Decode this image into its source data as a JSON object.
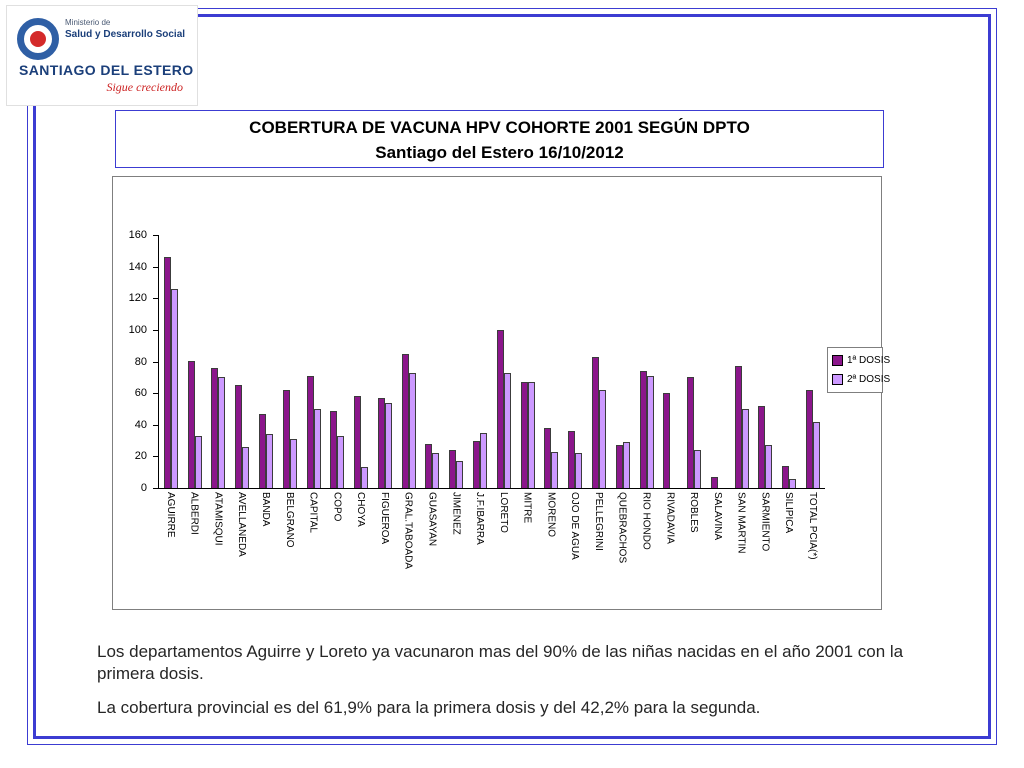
{
  "logo": {
    "line1": "Ministerio de",
    "line2": "Salud y Desarrollo Social",
    "line3": "SANTIAGO DEL ESTERO",
    "tagline": "Sigue creciendo"
  },
  "title": {
    "line1": "COBERTURA DE VACUNA HPV COHORTE 2001 SEGÚN DPTO",
    "line2": "Santiago del Estero 16/10/2012"
  },
  "chart_data": {
    "type": "bar",
    "title": "",
    "xlabel": "",
    "ylabel": "",
    "ylim": [
      0,
      160
    ],
    "yticks": [
      0,
      20,
      40,
      60,
      80,
      100,
      120,
      140,
      160
    ],
    "grid": false,
    "legend_position": "right",
    "categories": [
      "AGUIRRE",
      "ALBERDI",
      "ATAMISQUI",
      "AVELLANEDA",
      "BANDA",
      "BELGRANO",
      "CAPITAL",
      "COPO",
      "CHOYA",
      "FIGUEROA",
      "GRAL.TABOADA",
      "GUASAYAN",
      "JIMENEZ",
      "J.F.IBARRA",
      "LORETO",
      "MITRE",
      "MORENO",
      "OJO DE AGUA",
      "PELLEGRINI",
      "QUEBRACHOS",
      "RIO HONDO",
      "RIVADAVIA",
      "ROBLES",
      "SALAVINA",
      "SAN MARTIN",
      "SARMIENTO",
      "SILIPICA",
      "TOTAL PCIA(*)"
    ],
    "series": [
      {
        "name": "1ª DOSIS",
        "color": "#8b168b",
        "values": [
          146,
          80,
          76,
          65,
          47,
          62,
          71,
          49,
          58,
          57,
          85,
          28,
          24,
          30,
          100,
          67,
          38,
          36,
          83,
          27,
          74,
          60,
          70,
          7,
          77,
          52,
          14,
          62
        ]
      },
      {
        "name": "2ª DOSIS",
        "color": "#cc99ff",
        "values": [
          126,
          33,
          70,
          26,
          34,
          31,
          50,
          33,
          13,
          54,
          73,
          22,
          17,
          35,
          73,
          67,
          23,
          22,
          62,
          29,
          71,
          0,
          24,
          0,
          50,
          27,
          6,
          42
        ]
      }
    ]
  },
  "notes": {
    "para1": "Los departamentos Aguirre y Loreto  ya vacunaron mas del 90% de las niñas nacidas en el año 2001 con la primera dosis.",
    "para2": "La cobertura provincial es del 61,9% para la primera dosis y del 42,2% para la segunda."
  },
  "colors": {
    "frame": "#3c3cd2",
    "series1": "#8b168b",
    "series2": "#cc99ff"
  }
}
